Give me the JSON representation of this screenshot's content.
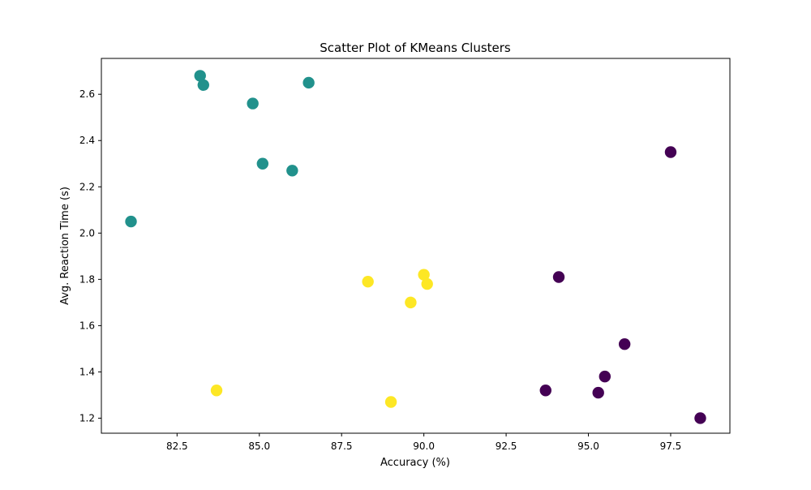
{
  "chart_data": {
    "type": "scatter",
    "title": "Scatter Plot of KMeans Clusters",
    "xlabel": "Accuracy (%)",
    "ylabel": "Avg. Reaction Time (s)",
    "xlim": [
      80.2,
      99.3
    ],
    "ylim": [
      1.135,
      2.755
    ],
    "xticks": [
      82.5,
      85.0,
      87.5,
      90.0,
      92.5,
      95.0,
      97.5
    ],
    "xtick_labels": [
      "82.5",
      "85.0",
      "87.5",
      "90.0",
      "92.5",
      "95.0",
      "97.5"
    ],
    "yticks": [
      1.2,
      1.4,
      1.6,
      1.8,
      2.0,
      2.2,
      2.4,
      2.6
    ],
    "ytick_labels": [
      "1.2",
      "1.4",
      "1.6",
      "1.8",
      "2.0",
      "2.2",
      "2.4",
      "2.6"
    ],
    "grid": false,
    "legend": false,
    "clusters": [
      {
        "color": "#440154",
        "points": [
          {
            "x": 97.5,
            "y": 2.35
          },
          {
            "x": 94.1,
            "y": 1.81
          },
          {
            "x": 96.1,
            "y": 1.52
          },
          {
            "x": 95.5,
            "y": 1.38
          },
          {
            "x": 93.7,
            "y": 1.32
          },
          {
            "x": 95.3,
            "y": 1.31
          },
          {
            "x": 98.4,
            "y": 1.2
          }
        ]
      },
      {
        "color": "#21918c",
        "points": [
          {
            "x": 83.2,
            "y": 2.68
          },
          {
            "x": 83.3,
            "y": 2.64
          },
          {
            "x": 86.5,
            "y": 2.65
          },
          {
            "x": 84.8,
            "y": 2.56
          },
          {
            "x": 85.1,
            "y": 2.3
          },
          {
            "x": 86.0,
            "y": 2.27
          },
          {
            "x": 81.1,
            "y": 2.05
          }
        ]
      },
      {
        "color": "#fde725",
        "points": [
          {
            "x": 90.0,
            "y": 1.82
          },
          {
            "x": 88.3,
            "y": 1.79
          },
          {
            "x": 90.1,
            "y": 1.78
          },
          {
            "x": 89.6,
            "y": 1.7
          },
          {
            "x": 83.7,
            "y": 1.32
          },
          {
            "x": 89.0,
            "y": 1.27
          }
        ]
      }
    ]
  }
}
